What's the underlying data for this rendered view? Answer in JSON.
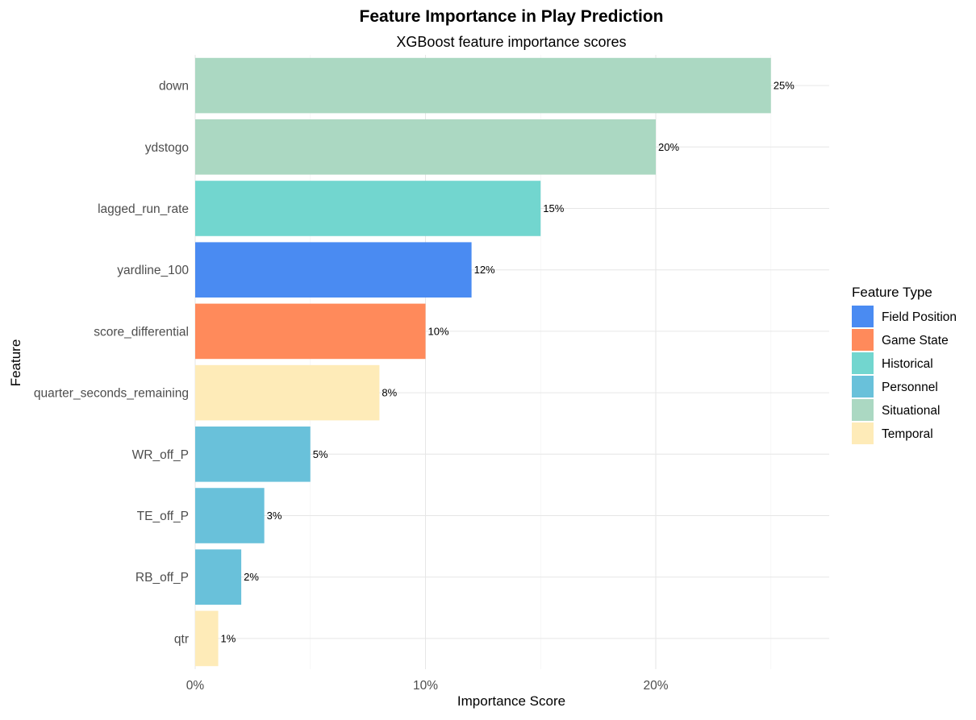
{
  "chart_data": {
    "type": "bar",
    "orientation": "horizontal",
    "title": "Feature Importance in Play Prediction",
    "subtitle": "XGBoost feature importance scores",
    "xlabel": "Importance Score",
    "ylabel": "Feature",
    "xlim": [
      0,
      0.275
    ],
    "x_ticks": [
      0,
      0.1,
      0.2
    ],
    "x_tick_labels": [
      "0%",
      "10%",
      "20%"
    ],
    "grid": true,
    "legend": {
      "title": "Feature Type",
      "position": "right",
      "entries": [
        {
          "label": "Field Position",
          "color": "#4A8BF2"
        },
        {
          "label": "Game State",
          "color": "#FF8A5B"
        },
        {
          "label": "Historical",
          "color": "#72D6CF"
        },
        {
          "label": "Personnel",
          "color": "#69C1DA"
        },
        {
          "label": "Situational",
          "color": "#ABD8C2"
        },
        {
          "label": "Temporal",
          "color": "#FEEBB8"
        }
      ]
    },
    "bars": [
      {
        "feature": "down",
        "value": 0.25,
        "label": "25%",
        "type": "Situational"
      },
      {
        "feature": "ydstogo",
        "value": 0.2,
        "label": "20%",
        "type": "Situational"
      },
      {
        "feature": "lagged_run_rate",
        "value": 0.15,
        "label": "15%",
        "type": "Historical"
      },
      {
        "feature": "yardline_100",
        "value": 0.12,
        "label": "12%",
        "type": "Field Position"
      },
      {
        "feature": "score_differential",
        "value": 0.1,
        "label": "10%",
        "type": "Game State"
      },
      {
        "feature": "quarter_seconds_remaining",
        "value": 0.08,
        "label": "8%",
        "type": "Temporal"
      },
      {
        "feature": "WR_off_P",
        "value": 0.05,
        "label": "5%",
        "type": "Personnel"
      },
      {
        "feature": "TE_off_P",
        "value": 0.03,
        "label": "3%",
        "type": "Personnel"
      },
      {
        "feature": "RB_off_P",
        "value": 0.02,
        "label": "2%",
        "type": "Personnel"
      },
      {
        "feature": "qtr",
        "value": 0.01,
        "label": "1%",
        "type": "Temporal"
      }
    ]
  }
}
